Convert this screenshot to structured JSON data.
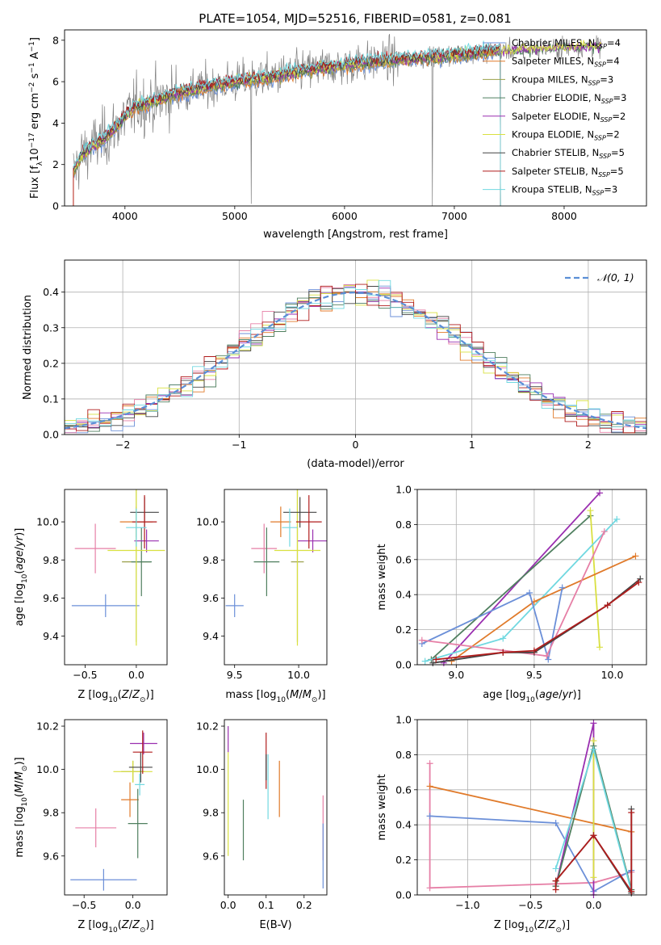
{
  "figure": {
    "title": "PLATE=1054, MJD=52516, FIBERID=0581, z=0.081"
  },
  "colors": {
    "Chabrier MILES": "#6b8fd8",
    "Salpeter MILES": "#e07a2a",
    "Kroupa MILES": "#9aa04a",
    "Chabrier ELODIE": "#4f7f5f",
    "Salpeter ELODIE": "#9a2fb0",
    "Kroupa ELODIE": "#d9e040",
    "Chabrier STELIB": "#444444",
    "Salpeter STELIB": "#b01c1c",
    "Kroupa STELIB": "#70d8e0",
    "extra_pink": "#e67fa6",
    "data_spectrum": "#808080",
    "normal_curve": "#5b8fd6"
  },
  "chart_data": [
    {
      "id": "spectrum",
      "type": "line",
      "xlabel": "wavelength [Angstrom, rest frame]",
      "ylabel": "Flux [f_λ 10⁻¹⁷ erg cm⁻² s⁻¹ A⁻¹]",
      "xlim": [
        3450,
        8750
      ],
      "ylim": [
        0,
        8.5
      ],
      "xticks": [
        4000,
        5000,
        6000,
        7000,
        8000
      ],
      "yticks": [
        0,
        2,
        4,
        6,
        8
      ],
      "grid": false,
      "legend_position": "right",
      "legend": [
        {
          "name": "Chabrier MILES",
          "label": "Chabrier MILES, N",
          "sub": "SSP",
          "suffix": "=4"
        },
        {
          "name": "Salpeter MILES",
          "label": "Salpeter MILES, N",
          "sub": "SSP",
          "suffix": "=4"
        },
        {
          "name": "Kroupa MILES",
          "label": "Kroupa MILES, N",
          "sub": "SSP",
          "suffix": "=3"
        },
        {
          "name": "Chabrier ELODIE",
          "label": "Chabrier ELODIE, N",
          "sub": "SSP",
          "suffix": "=3"
        },
        {
          "name": "Salpeter ELODIE",
          "label": "Salpeter ELODIE, N",
          "sub": "SSP",
          "suffix": "=2"
        },
        {
          "name": "Kroupa ELODIE",
          "label": "Kroupa ELODIE, N",
          "sub": "SSP",
          "suffix": "=2"
        },
        {
          "name": "Chabrier STELIB",
          "label": "Chabrier STELIB, N",
          "sub": "SSP",
          "suffix": "=5"
        },
        {
          "name": "Salpeter STELIB",
          "label": "Salpeter STELIB, N",
          "sub": "SSP",
          "suffix": "=5"
        },
        {
          "name": "Kroupa STELIB",
          "label": "Kroupa STELIB, N",
          "sub": "SSP",
          "suffix": "=3"
        }
      ],
      "continuum": {
        "x": [
          3530,
          3600,
          3700,
          3800,
          3900,
          4000,
          4100,
          4300,
          4500,
          4700,
          5000,
          5300,
          5600,
          6000,
          6300,
          6600,
          7000,
          7400,
          7800,
          8200,
          8350
        ],
        "y": [
          1.6,
          2.4,
          2.9,
          3.2,
          3.7,
          4.3,
          4.8,
          5.1,
          5.5,
          5.7,
          6.0,
          6.2,
          6.5,
          6.8,
          7.0,
          7.1,
          7.3,
          7.5,
          7.6,
          7.7,
          7.7
        ]
      }
    },
    {
      "id": "residuals",
      "type": "bar",
      "xlabel": "(data-model)/error",
      "ylabel": "Normed distribution",
      "xlim": [
        -2.5,
        2.5
      ],
      "ylim": [
        0,
        0.49
      ],
      "xticks": [
        -2,
        -1,
        0,
        1,
        2
      ],
      "yticks": [
        0.0,
        0.1,
        0.2,
        0.3,
        0.4
      ],
      "grid": true,
      "legend_position": "top-right",
      "legend_label": "𝒩(0, 1)",
      "bin_width": 0.1
    },
    {
      "id": "age_vs_Z",
      "type": "scatter",
      "xlabel": "Z [log10(Z/Z⊙)]",
      "ylabel": "age  [log10(age/yr)]",
      "xlim": [
        -0.7,
        0.3
      ],
      "ylim": [
        9.25,
        10.17
      ],
      "xticks": [
        -0.5,
        0.0
      ],
      "yticks": [
        9.4,
        9.6,
        9.8,
        10.0
      ],
      "points": [
        {
          "c": "Chabrier MILES",
          "x": -0.3,
          "y": 9.56,
          "xerr": 0.33,
          "yerr": 0.06
        },
        {
          "c": "extra_pink",
          "x": -0.4,
          "y": 9.86,
          "xerr": 0.2,
          "yerr": 0.13
        },
        {
          "c": "Salpeter MILES",
          "x": 0.0,
          "y": 10.0,
          "xerr": 0.16,
          "yerr": 0.08
        },
        {
          "c": "Kroupa MILES",
          "x": 0.0,
          "y": 9.79,
          "xerr": 0.14,
          "yerr": 0.42
        },
        {
          "c": "Chabrier ELODIE",
          "x": 0.05,
          "y": 9.79,
          "xerr": 0.1,
          "yerr": 0.18
        },
        {
          "c": "Salpeter ELODIE",
          "x": 0.1,
          "y": 9.9,
          "xerr": 0.12,
          "yerr": 0.06
        },
        {
          "c": "Kroupa ELODIE",
          "x": 0.0,
          "y": 9.85,
          "xerr": 0.28,
          "yerr": 0.5
        },
        {
          "c": "Chabrier STELIB",
          "x": 0.08,
          "y": 10.05,
          "xerr": 0.14,
          "yerr": 0.08
        },
        {
          "c": "Salpeter STELIB",
          "x": 0.08,
          "y": 10.0,
          "xerr": 0.12,
          "yerr": 0.14
        },
        {
          "c": "Kroupa STELIB",
          "x": 0.0,
          "y": 9.97,
          "xerr": 0.1,
          "yerr": 0.1
        }
      ]
    },
    {
      "id": "age_vs_mass",
      "type": "scatter",
      "xlabel": "mass [log10(M/M⊙)]",
      "ylabel": "",
      "xlim": [
        9.42,
        10.22
      ],
      "ylim": [
        9.25,
        10.17
      ],
      "xticks": [
        9.5,
        10.0
      ],
      "yticks": [
        9.4,
        9.6,
        9.8,
        10.0
      ],
      "points": [
        {
          "c": "Chabrier MILES",
          "x": 9.5,
          "y": 9.56,
          "xerr": 0.07,
          "yerr": 0.06
        },
        {
          "c": "extra_pink",
          "x": 9.73,
          "y": 9.86,
          "xerr": 0.1,
          "yerr": 0.13
        },
        {
          "c": "Salpeter MILES",
          "x": 9.86,
          "y": 10.0,
          "xerr": 0.08,
          "yerr": 0.08
        },
        {
          "c": "Kroupa MILES",
          "x": 9.99,
          "y": 9.79,
          "xerr": 0.05,
          "yerr": 0.42
        },
        {
          "c": "Chabrier ELODIE",
          "x": 9.75,
          "y": 9.79,
          "xerr": 0.1,
          "yerr": 0.18
        },
        {
          "c": "Salpeter ELODIE",
          "x": 10.11,
          "y": 9.9,
          "xerr": 0.12,
          "yerr": 0.06
        },
        {
          "c": "Kroupa ELODIE",
          "x": 9.99,
          "y": 9.85,
          "xerr": 0.18,
          "yerr": 0.5
        },
        {
          "c": "Chabrier STELIB",
          "x": 10.01,
          "y": 10.05,
          "xerr": 0.13,
          "yerr": 0.08
        },
        {
          "c": "Salpeter STELIB",
          "x": 10.08,
          "y": 10.0,
          "xerr": 0.1,
          "yerr": 0.14
        },
        {
          "c": "Kroupa STELIB",
          "x": 9.93,
          "y": 9.97,
          "xerr": 0.06,
          "yerr": 0.1
        }
      ]
    },
    {
      "id": "weight_vs_age",
      "type": "line",
      "xlabel": "age  [log10(age/yr)]",
      "ylabel": "mass weight",
      "xlim": [
        8.75,
        10.22
      ],
      "ylim": [
        0,
        1
      ],
      "xticks": [
        9.0,
        9.5,
        10.0
      ],
      "yticks": [
        0.0,
        0.2,
        0.4,
        0.6,
        0.8,
        1.0
      ],
      "grid": true,
      "series": [
        {
          "c": "Salpeter ELODIE",
          "x": [
            8.92,
            9.92
          ],
          "y": [
            0.01,
            0.98
          ]
        },
        {
          "c": "Chabrier ELODIE",
          "x": [
            8.84,
            9.86
          ],
          "y": [
            0.03,
            0.85
          ]
        },
        {
          "c": "Kroupa ELODIE",
          "x": [
            9.86,
            9.92
          ],
          "y": [
            0.88,
            0.1
          ]
        },
        {
          "c": "Kroupa STELIB",
          "x": [
            8.8,
            9.3,
            10.03
          ],
          "y": [
            0.02,
            0.15,
            0.83
          ]
        },
        {
          "c": "Salpeter MILES",
          "x": [
            8.97,
            9.5,
            10.15
          ],
          "y": [
            0.02,
            0.36,
            0.62
          ]
        },
        {
          "c": "Chabrier MILES",
          "x": [
            8.78,
            9.47,
            9.59,
            9.68
          ],
          "y": [
            0.12,
            0.41,
            0.03,
            0.44
          ]
        },
        {
          "c": "extra_pink",
          "x": [
            8.78,
            9.58,
            9.95
          ],
          "y": [
            0.14,
            0.05,
            0.76
          ]
        },
        {
          "c": "Chabrier STELIB",
          "x": [
            8.85,
            9.3,
            9.5,
            9.97,
            10.18
          ],
          "y": [
            0.01,
            0.07,
            0.07,
            0.34,
            0.49
          ]
        },
        {
          "c": "Salpeter STELIB",
          "x": [
            8.87,
            9.3,
            9.5,
            9.97,
            10.17
          ],
          "y": [
            0.03,
            0.07,
            0.08,
            0.34,
            0.47
          ]
        }
      ]
    },
    {
      "id": "mass_vs_Z",
      "type": "scatter",
      "xlabel": "Z [log10(Z/Z⊙)]",
      "ylabel": "mass [log10(M/M⊙)]",
      "xlim": [
        -0.7,
        0.35
      ],
      "ylim": [
        9.42,
        10.23
      ],
      "xticks": [
        -0.5,
        0.0
      ],
      "yticks": [
        9.6,
        9.8,
        10.0,
        10.2
      ],
      "points": [
        {
          "c": "Chabrier MILES",
          "x": -0.3,
          "y": 9.49,
          "xerr": 0.34,
          "yerr": 0.05
        },
        {
          "c": "extra_pink",
          "x": -0.38,
          "y": 9.73,
          "xerr": 0.21,
          "yerr": 0.09
        },
        {
          "c": "Salpeter MILES",
          "x": -0.03,
          "y": 9.86,
          "xerr": 0.09,
          "yerr": 0.08
        },
        {
          "c": "Kroupa MILES",
          "x": -0.0,
          "y": 9.99,
          "xerr": 0.12,
          "yerr": 0.05
        },
        {
          "c": "Chabrier ELODIE",
          "x": 0.05,
          "y": 9.75,
          "xerr": 0.1,
          "yerr": 0.16
        },
        {
          "c": "Salpeter ELODIE",
          "x": 0.11,
          "y": 10.12,
          "xerr": 0.14,
          "yerr": 0.05
        },
        {
          "c": "Kroupa ELODIE",
          "x": 0.0,
          "y": 9.99,
          "xerr": 0.2,
          "yerr": 0.05
        },
        {
          "c": "Chabrier STELIB",
          "x": 0.08,
          "y": 10.01,
          "xerr": 0.12,
          "yerr": 0.07
        },
        {
          "c": "Salpeter STELIB",
          "x": 0.1,
          "y": 10.08,
          "xerr": 0.1,
          "yerr": 0.1
        },
        {
          "c": "Kroupa STELIB",
          "x": 0.07,
          "y": 9.93,
          "xerr": 0.05,
          "yerr": 0.05
        }
      ]
    },
    {
      "id": "mass_vs_ebv",
      "type": "scatter",
      "xlabel": "E(B-V)",
      "ylabel": "",
      "xlim": [
        -0.01,
        0.26
      ],
      "ylim": [
        9.42,
        10.23
      ],
      "xticks": [
        0.0,
        0.1,
        0.2
      ],
      "yticks": [
        9.6,
        9.8,
        10.0,
        10.2
      ],
      "points": [
        {
          "c": "Kroupa ELODIE",
          "x": 0.0,
          "y": 9.84,
          "xerr": 0,
          "yerr": 0.24
        },
        {
          "c": "Salpeter ELODIE",
          "x": 0.0,
          "y": 10.14,
          "xerr": 0,
          "yerr": 0.06
        },
        {
          "c": "Chabrier ELODIE",
          "x": 0.04,
          "y": 9.72,
          "xerr": 0,
          "yerr": 0.14
        },
        {
          "c": "Salpeter STELIB",
          "x": 0.1,
          "y": 10.04,
          "xerr": 0,
          "yerr": 0.13
        },
        {
          "c": "Chabrier STELIB",
          "x": 0.1,
          "y": 10.01,
          "xerr": 0,
          "yerr": 0.06
        },
        {
          "c": "Kroupa STELIB",
          "x": 0.105,
          "y": 9.92,
          "xerr": 0,
          "yerr": 0.15
        },
        {
          "c": "Salpeter MILES",
          "x": 0.135,
          "y": 9.91,
          "xerr": 0,
          "yerr": 0.13
        },
        {
          "c": "extra_pink",
          "x": 0.25,
          "y": 9.73,
          "xerr": 0,
          "yerr": 0.15
        },
        {
          "c": "Chabrier MILES",
          "x": 0.25,
          "y": 9.6,
          "xerr": 0,
          "yerr": 0.15
        }
      ]
    },
    {
      "id": "weight_vs_Z",
      "type": "line",
      "xlabel": "Z [log10(Z/Z⊙)]",
      "ylabel": "mass weight",
      "xlim": [
        -1.4,
        0.42
      ],
      "ylim": [
        0,
        1
      ],
      "xticks": [
        -1.0,
        -0.5,
        0.0
      ],
      "yticks": [
        0.0,
        0.2,
        0.4,
        0.6,
        0.8,
        1.0
      ],
      "grid": true,
      "series": [
        {
          "c": "extra_pink",
          "x": [
            -1.3,
            -1.3,
            0.0,
            0.3
          ],
          "y": [
            0.75,
            0.04,
            0.07,
            0.13
          ]
        },
        {
          "c": "Salpeter MILES",
          "x": [
            -1.3,
            0.3
          ],
          "y": [
            0.62,
            0.36
          ]
        },
        {
          "c": "Chabrier MILES",
          "x": [
            -1.3,
            -0.3,
            0.0,
            0.3
          ],
          "y": [
            0.45,
            0.41,
            0.02,
            0.14
          ]
        },
        {
          "c": "Salpeter ELODIE",
          "x": [
            -0.3,
            0.0,
            0.0
          ],
          "y": [
            0.05,
            0.98,
            0.0
          ]
        },
        {
          "c": "Kroupa ELODIE",
          "x": [
            0.0,
            0.0
          ],
          "y": [
            0.88,
            0.1
          ]
        },
        {
          "c": "Chabrier ELODIE",
          "x": [
            -0.3,
            0.0,
            0.3
          ],
          "y": [
            0.05,
            0.85,
            0.03
          ]
        },
        {
          "c": "Kroupa STELIB",
          "x": [
            -0.3,
            0.0,
            0.3
          ],
          "y": [
            0.15,
            0.83,
            0.02
          ]
        },
        {
          "c": "Chabrier STELIB",
          "x": [
            -0.3,
            0.0,
            0.3,
            0.3
          ],
          "y": [
            0.08,
            0.34,
            0.01,
            0.49
          ]
        },
        {
          "c": "Salpeter STELIB",
          "x": [
            -0.3,
            -0.3,
            0.0,
            0.3,
            0.3
          ],
          "y": [
            0.03,
            0.08,
            0.34,
            0.02,
            0.47
          ]
        }
      ]
    }
  ]
}
